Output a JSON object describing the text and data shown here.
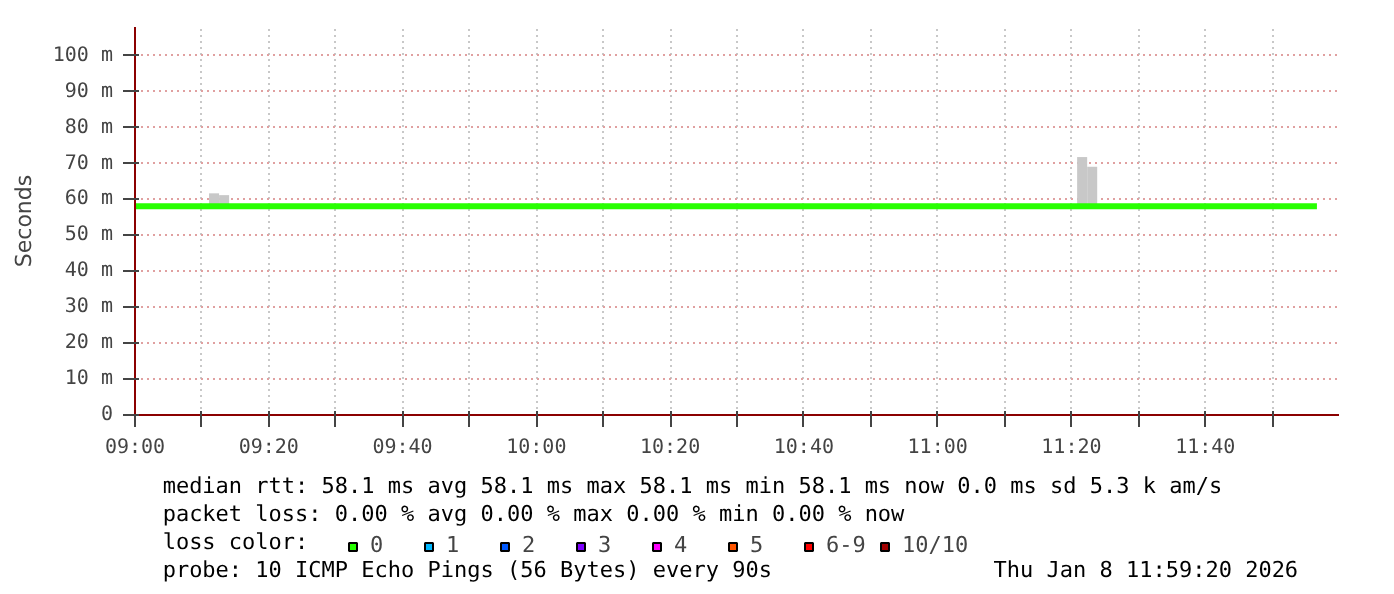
{
  "chart_data": {
    "type": "line",
    "ylabel": "Seconds",
    "xlim": [
      9.0,
      12.0
    ],
    "ylim": [
      0,
      108
    ],
    "xticks": [
      {
        "value": 9.0,
        "label": "09:00"
      },
      {
        "value": 9.1667,
        "label": null
      },
      {
        "value": 9.3333,
        "label": "09:20"
      },
      {
        "value": 9.5,
        "label": null
      },
      {
        "value": 9.6667,
        "label": "09:40"
      },
      {
        "value": 9.8333,
        "label": null
      },
      {
        "value": 10.0,
        "label": "10:00"
      },
      {
        "value": 10.1667,
        "label": null
      },
      {
        "value": 10.3333,
        "label": "10:20"
      },
      {
        "value": 10.5,
        "label": null
      },
      {
        "value": 10.6667,
        "label": "10:40"
      },
      {
        "value": 10.8333,
        "label": null
      },
      {
        "value": 11.0,
        "label": "11:00"
      },
      {
        "value": 11.1667,
        "label": null
      },
      {
        "value": 11.3333,
        "label": "11:20"
      },
      {
        "value": 11.5,
        "label": null
      },
      {
        "value": 11.6667,
        "label": "11:40"
      },
      {
        "value": 11.8333,
        "label": null
      }
    ],
    "yticks": [
      0,
      {
        "value": 10,
        "label": "10 m"
      },
      {
        "value": 20,
        "label": "20 m"
      },
      {
        "value": 30,
        "label": "30 m"
      },
      {
        "value": 40,
        "label": "40 m"
      },
      {
        "value": 50,
        "label": "50 m"
      },
      {
        "value": 60,
        "label": "60 m"
      },
      {
        "value": 70,
        "label": "70 m"
      },
      {
        "value": 80,
        "label": "80 m"
      },
      {
        "value": 90,
        "label": "90 m"
      },
      {
        "value": 100,
        "label": "100 m"
      }
    ],
    "grid": true,
    "legend": "bottom",
    "legend_title": "loss color:",
    "series": [
      {
        "type": "bar",
        "color": "#c8c8c8",
        "x": [
          9.197,
          9.222,
          11.36,
          11.385
        ],
        "base": [
          58.1,
          58.1,
          58.1,
          58.1
        ],
        "values": [
          3.6,
          3.1,
          13.7,
          11.0
        ]
      },
      {
        "name": "0",
        "color": "#26ff00",
        "x": [
          9.0,
          11.945
        ],
        "values": [
          58.1,
          58.1
        ]
      },
      {
        "name": "1",
        "color": "#00b8ff"
      },
      {
        "name": "2",
        "color": "#0059ff"
      },
      {
        "name": "3",
        "color": "#7e00ff"
      },
      {
        "name": "4",
        "color": "#ff00ff"
      },
      {
        "name": "5",
        "color": "#ff5500"
      },
      {
        "name": "6-9",
        "color": "#ff0000"
      },
      {
        "name": "10/10",
        "color": "#a10000"
      }
    ],
    "annotations": [
      "median rtt:  58.1 ms avg  58.1 ms max  58.1 ms min  58.1 ms now  0.0 ms sd  5.3 k am/s",
      "packet loss: 0.00 % avg  0.00 % max  0.00 % min  0.00 % now",
      "probe:       10 ICMP Echo Pings (56 Bytes) every 90s",
      "Thu Jan  8 11:59:20 2026"
    ]
  }
}
